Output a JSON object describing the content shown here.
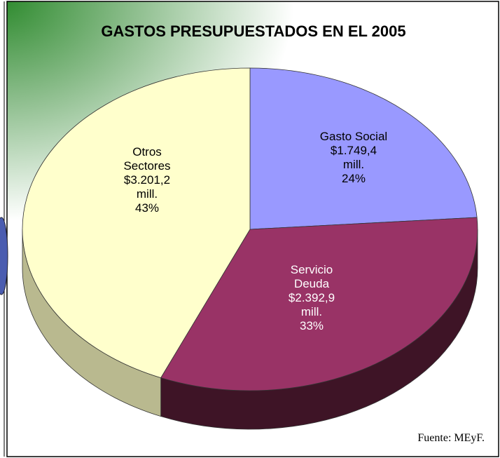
{
  "chart_data": {
    "type": "pie3d",
    "title": "GASTOS PRESUPUESTADOS EN EL 2005",
    "categories": [
      "Gasto Social",
      "Servicio Deuda",
      "Otros Sectores"
    ],
    "values": [
      1749.4,
      2392.9,
      3201.2
    ],
    "value_labels": [
      "$1.749,4 mill.",
      "$2.392,9 mill.",
      "$3.201,2 mill."
    ],
    "percent_labels": [
      "24%",
      "33%",
      "43%"
    ],
    "colors": [
      "#9999ff",
      "#993366",
      "#ffffcc"
    ],
    "side_colors": [
      "#5a5a99",
      "#3e1426",
      "#b9b98f"
    ],
    "label_colors": [
      "#000000",
      "#ffffff",
      "#000000"
    ],
    "source": "Fuente: MEyF."
  }
}
